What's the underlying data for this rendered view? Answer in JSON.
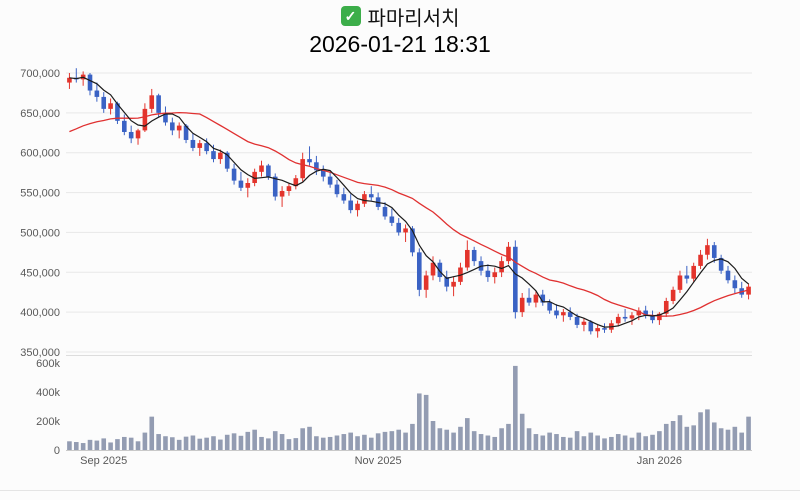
{
  "header": {
    "check_glyph": "✓",
    "checkbox_color": "#3cae4a",
    "title": "파마리서치",
    "timestamp": "2026-01-21 18:31"
  },
  "chart_data": {
    "type": "candlestick",
    "subtype": "price-with-volume",
    "title": "파마리서치",
    "timestamp": "2026-01-21 18:31",
    "grid": true,
    "price_axis": {
      "min": 350000,
      "max": 700000,
      "step": 50000,
      "ticks": [
        {
          "value": 700000,
          "label": "700,000"
        },
        {
          "value": 650000,
          "label": "650,000"
        },
        {
          "value": 600000,
          "label": "600,000"
        },
        {
          "value": 550000,
          "label": "550,000"
        },
        {
          "value": 500000,
          "label": "500,000"
        },
        {
          "value": 450000,
          "label": "450,000"
        },
        {
          "value": 400000,
          "label": "400,000"
        },
        {
          "value": 350000,
          "label": "350,000"
        }
      ]
    },
    "volume_axis": {
      "max": 600000,
      "ticks": [
        {
          "value": 600000,
          "label": "600k"
        },
        {
          "value": 400000,
          "label": "400k"
        },
        {
          "value": 200000,
          "label": "200k"
        },
        {
          "value": 0,
          "label": "0"
        }
      ]
    },
    "x_labels": [
      {
        "index": 5,
        "label": "Sep 2025"
      },
      {
        "index": 45,
        "label": "Nov 2025"
      },
      {
        "index": 86,
        "label": "Jan 2026"
      }
    ],
    "moving_averages": {
      "short": {
        "period": 5,
        "color": "#1c1c1c"
      },
      "long": {
        "period": 20,
        "color": "#e03131",
        "seed": 623000
      }
    },
    "colors": {
      "up": "#e3342c",
      "down": "#3a62c4",
      "volume": "#939cb2",
      "grid": "#e8e8e8",
      "separator": "#dddddd",
      "baseline": "#c9c9c9",
      "axis_text": "#595959"
    },
    "candles_format": [
      "open",
      "high",
      "low",
      "close",
      "volume"
    ],
    "candles": [
      [
        688000,
        700000,
        680000,
        694000,
        60000
      ],
      [
        694000,
        706000,
        688000,
        692000,
        55000
      ],
      [
        692000,
        702000,
        684000,
        698000,
        48000
      ],
      [
        698000,
        700000,
        672000,
        678000,
        70000
      ],
      [
        678000,
        688000,
        664000,
        670000,
        65000
      ],
      [
        670000,
        676000,
        650000,
        655000,
        80000
      ],
      [
        655000,
        668000,
        648000,
        662000,
        52000
      ],
      [
        662000,
        664000,
        636000,
        640000,
        75000
      ],
      [
        640000,
        648000,
        622000,
        626000,
        90000
      ],
      [
        626000,
        634000,
        612000,
        618000,
        85000
      ],
      [
        618000,
        630000,
        610000,
        628000,
        60000
      ],
      [
        628000,
        662000,
        626000,
        655000,
        120000
      ],
      [
        655000,
        680000,
        650000,
        672000,
        230000
      ],
      [
        672000,
        674000,
        645000,
        650000,
        110000
      ],
      [
        650000,
        658000,
        634000,
        638000,
        95000
      ],
      [
        638000,
        644000,
        622000,
        628000,
        88000
      ],
      [
        628000,
        638000,
        618000,
        634000,
        70000
      ],
      [
        634000,
        636000,
        612000,
        616000,
        92000
      ],
      [
        616000,
        624000,
        602000,
        606000,
        100000
      ],
      [
        606000,
        616000,
        596000,
        612000,
        78000
      ],
      [
        612000,
        618000,
        598000,
        602000,
        85000
      ],
      [
        602000,
        610000,
        588000,
        592000,
        95000
      ],
      [
        592000,
        604000,
        586000,
        600000,
        72000
      ],
      [
        600000,
        602000,
        576000,
        580000,
        105000
      ],
      [
        580000,
        586000,
        560000,
        565000,
        115000
      ],
      [
        565000,
        576000,
        552000,
        556000,
        98000
      ],
      [
        556000,
        568000,
        544000,
        562000,
        125000
      ],
      [
        562000,
        580000,
        558000,
        576000,
        140000
      ],
      [
        576000,
        590000,
        570000,
        584000,
        90000
      ],
      [
        584000,
        586000,
        566000,
        570000,
        80000
      ],
      [
        570000,
        574000,
        540000,
        545000,
        130000
      ],
      [
        545000,
        558000,
        532000,
        552000,
        110000
      ],
      [
        552000,
        562000,
        546000,
        558000,
        75000
      ],
      [
        558000,
        572000,
        554000,
        568000,
        82000
      ],
      [
        568000,
        600000,
        564000,
        592000,
        150000
      ],
      [
        592000,
        608000,
        584000,
        588000,
        160000
      ],
      [
        588000,
        596000,
        572000,
        578000,
        95000
      ],
      [
        578000,
        584000,
        564000,
        570000,
        85000
      ],
      [
        570000,
        576000,
        556000,
        560000,
        90000
      ],
      [
        560000,
        566000,
        544000,
        548000,
        100000
      ],
      [
        548000,
        556000,
        536000,
        540000,
        110000
      ],
      [
        540000,
        548000,
        524000,
        528000,
        120000
      ],
      [
        528000,
        540000,
        520000,
        536000,
        95000
      ],
      [
        536000,
        552000,
        532000,
        548000,
        105000
      ],
      [
        548000,
        558000,
        540000,
        544000,
        85000
      ],
      [
        544000,
        550000,
        528000,
        532000,
        115000
      ],
      [
        532000,
        538000,
        516000,
        520000,
        125000
      ],
      [
        520000,
        530000,
        508000,
        512000,
        130000
      ],
      [
        512000,
        518000,
        496000,
        500000,
        140000
      ],
      [
        500000,
        510000,
        488000,
        505000,
        120000
      ],
      [
        505000,
        508000,
        470000,
        475000,
        180000
      ],
      [
        475000,
        480000,
        420000,
        428000,
        390000
      ],
      [
        428000,
        452000,
        418000,
        446000,
        380000
      ],
      [
        446000,
        470000,
        440000,
        462000,
        200000
      ],
      [
        462000,
        466000,
        438000,
        444000,
        150000
      ],
      [
        444000,
        452000,
        426000,
        432000,
        140000
      ],
      [
        432000,
        444000,
        420000,
        438000,
        120000
      ],
      [
        438000,
        462000,
        434000,
        456000,
        160000
      ],
      [
        456000,
        490000,
        452000,
        478000,
        220000
      ],
      [
        478000,
        482000,
        458000,
        464000,
        130000
      ],
      [
        464000,
        470000,
        446000,
        452000,
        110000
      ],
      [
        452000,
        460000,
        438000,
        444000,
        100000
      ],
      [
        444000,
        456000,
        436000,
        450000,
        90000
      ],
      [
        450000,
        470000,
        444000,
        464000,
        150000
      ],
      [
        464000,
        488000,
        460000,
        482000,
        180000
      ],
      [
        482000,
        490000,
        392000,
        400000,
        580000
      ],
      [
        400000,
        424000,
        394000,
        418000,
        250000
      ],
      [
        418000,
        430000,
        408000,
        412000,
        150000
      ],
      [
        412000,
        426000,
        406000,
        422000,
        110000
      ],
      [
        422000,
        428000,
        408000,
        412000,
        100000
      ],
      [
        412000,
        416000,
        398000,
        402000,
        120000
      ],
      [
        402000,
        410000,
        392000,
        396000,
        110000
      ],
      [
        396000,
        404000,
        388000,
        400000,
        90000
      ],
      [
        400000,
        406000,
        390000,
        394000,
        85000
      ],
      [
        394000,
        398000,
        380000,
        384000,
        130000
      ],
      [
        384000,
        392000,
        376000,
        388000,
        95000
      ],
      [
        388000,
        390000,
        372000,
        376000,
        120000
      ],
      [
        376000,
        384000,
        368000,
        380000,
        100000
      ],
      [
        380000,
        386000,
        374000,
        378000,
        80000
      ],
      [
        378000,
        390000,
        374000,
        386000,
        90000
      ],
      [
        386000,
        398000,
        382000,
        394000,
        110000
      ],
      [
        394000,
        404000,
        388000,
        392000,
        100000
      ],
      [
        392000,
        400000,
        384000,
        396000,
        85000
      ],
      [
        396000,
        406000,
        390000,
        402000,
        120000
      ],
      [
        402000,
        408000,
        392000,
        396000,
        95000
      ],
      [
        396000,
        402000,
        386000,
        390000,
        105000
      ],
      [
        390000,
        400000,
        384000,
        398000,
        130000
      ],
      [
        398000,
        418000,
        394000,
        414000,
        180000
      ],
      [
        414000,
        432000,
        410000,
        428000,
        200000
      ],
      [
        428000,
        452000,
        424000,
        446000,
        240000
      ],
      [
        446000,
        458000,
        436000,
        442000,
        160000
      ],
      [
        442000,
        462000,
        438000,
        458000,
        170000
      ],
      [
        458000,
        478000,
        454000,
        472000,
        260000
      ],
      [
        472000,
        492000,
        466000,
        484000,
        280000
      ],
      [
        484000,
        488000,
        462000,
        468000,
        190000
      ],
      [
        468000,
        472000,
        448000,
        452000,
        150000
      ],
      [
        452000,
        458000,
        436000,
        440000,
        140000
      ],
      [
        440000,
        446000,
        424000,
        430000,
        160000
      ],
      [
        430000,
        438000,
        418000,
        422000,
        120000
      ],
      [
        422000,
        436000,
        416000,
        432000,
        230000
      ]
    ]
  }
}
